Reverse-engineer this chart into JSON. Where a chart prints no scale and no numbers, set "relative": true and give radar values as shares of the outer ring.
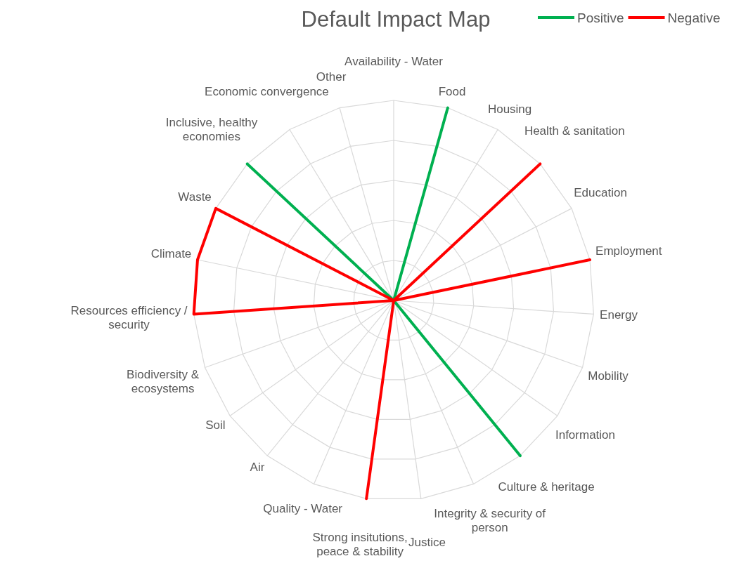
{
  "chart_data": {
    "type": "radar",
    "title": "Default Impact Map",
    "relative": true,
    "legend": "top right",
    "marker": "none",
    "categories": [
      "Availability - Water",
      "Food",
      "Housing",
      "Health & sanitation",
      "Education",
      "Employment",
      "Energy",
      "Mobility",
      "Information",
      "Culture & heritage",
      "Integrity & security of person",
      "Justice",
      "Strong insitutions, peace & stability",
      "Quality - Water",
      "Air",
      "Soil",
      "Biodiversity & ecosystems",
      "Resources efficiency / security",
      "Climate",
      "Waste",
      "Inclusive, healthy economies",
      "Economic convergence",
      "Other"
    ],
    "series": [
      {
        "name": "Positive",
        "color": "#00b050",
        "values": [
          0,
          1,
          0,
          0,
          0,
          0,
          0,
          0,
          0,
          1,
          0,
          0,
          0,
          0,
          0,
          0,
          0,
          0,
          0,
          0,
          1,
          0,
          0
        ]
      },
      {
        "name": "Negative",
        "color": "#ff0000",
        "values": [
          0,
          0,
          0,
          1,
          0,
          1,
          0,
          0,
          0,
          0,
          0,
          0,
          1,
          0,
          0,
          0,
          0,
          1,
          1,
          1,
          0,
          0,
          0
        ]
      }
    ]
  }
}
